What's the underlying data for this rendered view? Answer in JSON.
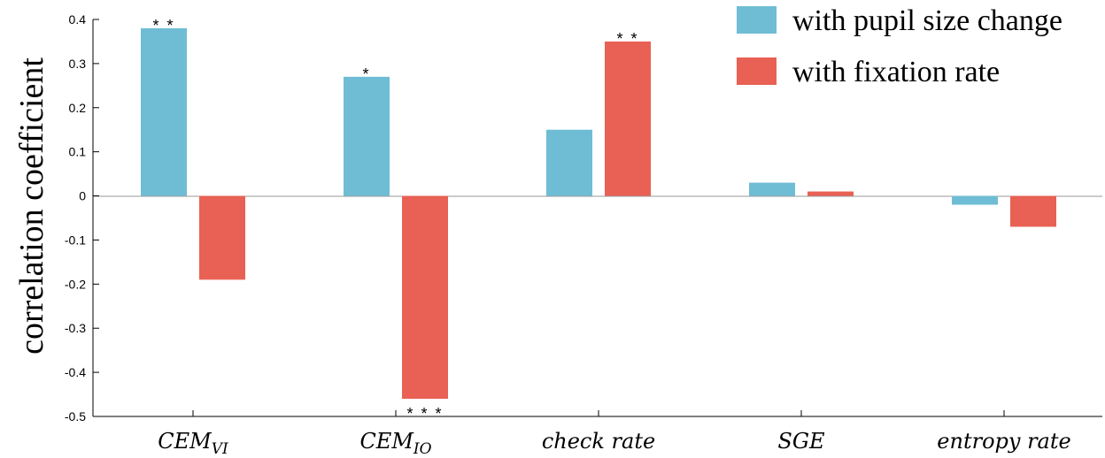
{
  "chart_data": {
    "type": "bar",
    "title": "",
    "xlabel": "",
    "ylabel": "correlation coefficient",
    "ylim": [
      -0.5,
      0.4
    ],
    "yticks": [
      "0.4",
      "0.3",
      "0.2",
      "0.1",
      "0",
      "-0.1",
      "-0.2",
      "-0.3",
      "-0.4",
      "-0.5"
    ],
    "categories": [
      {
        "main": "CEM",
        "sub": "VI"
      },
      {
        "main": "CEM",
        "sub": "IO"
      },
      {
        "main": "check rate",
        "sub": ""
      },
      {
        "main": "SGE",
        "sub": ""
      },
      {
        "main": "entropy rate",
        "sub": ""
      }
    ],
    "series": [
      {
        "name": "with pupil size change",
        "color": "#6fbdd5",
        "values": [
          0.38,
          0.27,
          0.15,
          0.03,
          -0.02
        ]
      },
      {
        "name": "with fixation rate",
        "color": "#e86154",
        "values": [
          -0.19,
          -0.46,
          0.35,
          0.01,
          -0.07
        ]
      }
    ],
    "significance": [
      [
        "* *",
        "*",
        "",
        "",
        ""
      ],
      [
        "",
        "* * *",
        "* *",
        "",
        ""
      ]
    ],
    "grid": false,
    "legend_position": "top-right"
  }
}
